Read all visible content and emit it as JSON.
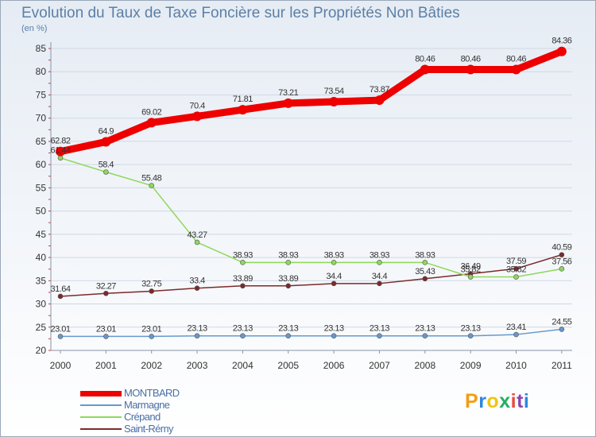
{
  "header": {
    "title": "Evolution du Taux de Taxe Foncière sur les Propriétés Non Bâties",
    "unit": "(en %)"
  },
  "logo": {
    "letters": [
      "P",
      "r",
      "o",
      "x",
      "i",
      "t",
      "i"
    ],
    "colors": [
      "#f39c12",
      "#2e86de",
      "#f1c40f",
      "#27ae60",
      "#e74c3c",
      "#8e44ad",
      "#2e86de"
    ]
  },
  "chart_data": {
    "type": "line",
    "title": "Evolution du Taux de Taxe Foncière sur les Propriétés Non Bâties",
    "ylabel": "(en %)",
    "xlabel": "",
    "x": [
      "2000",
      "2001",
      "2002",
      "2003",
      "2004",
      "2005",
      "2006",
      "2007",
      "2008",
      "2009",
      "2010",
      "2011"
    ],
    "ylim": [
      20,
      85
    ],
    "yticks": [
      20,
      25,
      30,
      35,
      40,
      45,
      50,
      55,
      60,
      65,
      70,
      75,
      80,
      85
    ],
    "series": [
      {
        "name": "MONTBARD",
        "color": "#ee0000",
        "values": [
          62.82,
          64.9,
          69.02,
          70.4,
          71.81,
          73.21,
          73.54,
          73.87,
          80.46,
          80.46,
          80.46,
          84.36
        ],
        "labels": [
          "62.82",
          "64.9",
          "69.02",
          "70.4",
          "71.81",
          "73.21",
          "73.54",
          "73.87",
          "80.46",
          "80.46",
          "80.46",
          "84.36"
        ]
      },
      {
        "name": "Marmagne",
        "color": "#6699cc",
        "values": [
          23.01,
          23.01,
          23.01,
          23.13,
          23.13,
          23.13,
          23.13,
          23.13,
          23.13,
          23.13,
          23.41,
          24.55
        ],
        "labels": [
          "23.01",
          "23.01",
          "23.01",
          "23.13",
          "23.13",
          "23.13",
          "23.13",
          "23.13",
          "23.13",
          "23.13",
          "23.41",
          "24.55"
        ]
      },
      {
        "name": "Crépand",
        "color": "#8ed85a",
        "values": [
          61.44,
          58.4,
          55.48,
          43.27,
          38.93,
          38.93,
          38.93,
          38.93,
          38.93,
          35.82,
          35.82,
          37.56
        ],
        "labels": [
          "61.44",
          "58.4",
          "55.48",
          "43.27",
          "38.93",
          "38.93",
          "38.93",
          "38.93",
          "38.93",
          "35.82",
          "35.82",
          "37.56"
        ]
      },
      {
        "name": "Saint-Rémy",
        "color": "#7b2a2a",
        "values": [
          31.64,
          32.27,
          32.75,
          33.4,
          33.89,
          33.89,
          34.4,
          34.4,
          35.43,
          36.49,
          37.59,
          40.59
        ],
        "labels": [
          "31.64",
          "32.27",
          "32.75",
          "33.4",
          "33.89",
          "33.89",
          "34.4",
          "34.4",
          "35.43",
          "36.49",
          "37.59",
          "40.59"
        ]
      }
    ]
  }
}
